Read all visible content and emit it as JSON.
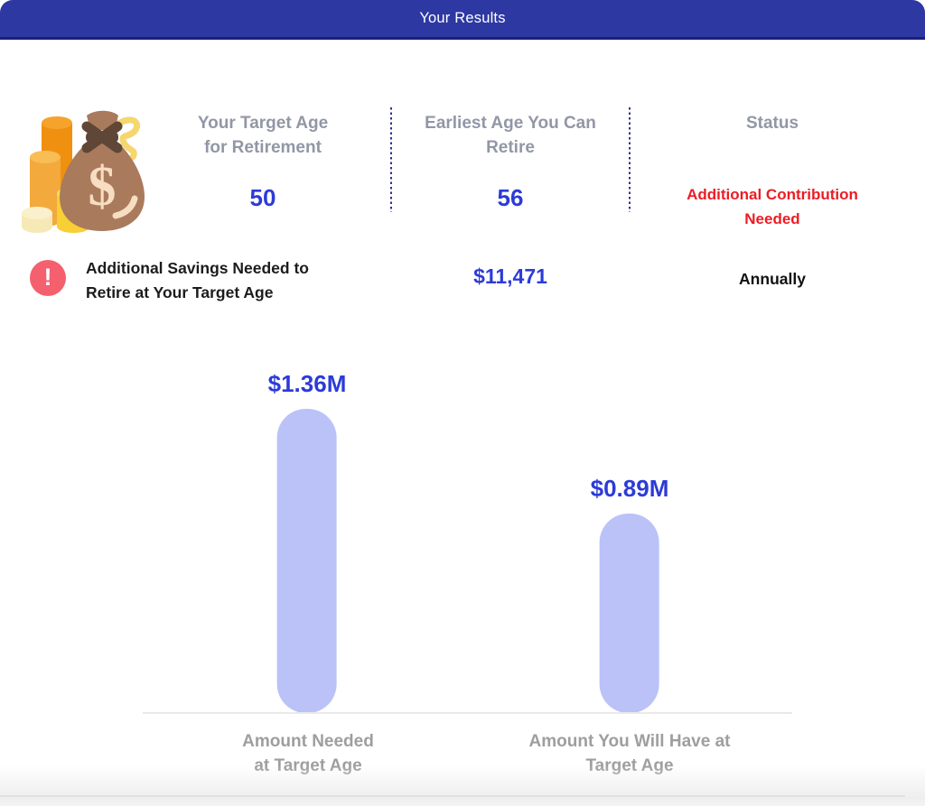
{
  "header": {
    "title": "Your Results",
    "background_color": "#2e38a2",
    "border_color": "#1b2178"
  },
  "summary": {
    "icon": "money-bag-coins-icon",
    "heading_color": "#9297a6",
    "value_color": "#2c3bd8",
    "columns": [
      {
        "heading": "Your Target Age\nfor Retirement",
        "value": "50"
      },
      {
        "heading": "Earliest Age You Can\nRetire",
        "value": "56"
      },
      {
        "heading": "Status",
        "value": "Additional Contribution\nNeeded",
        "value_color": "#ed1c24"
      }
    ]
  },
  "alert": {
    "icon": "exclamation-circle-icon",
    "icon_color": "#f4606e",
    "exclamation": "!",
    "label": "Additional Savings Needed to\nRetire at Your Target Age",
    "amount": "$11,471",
    "amount_color": "#2c3bd8",
    "frequency": "Annually"
  },
  "chart_data": {
    "type": "bar",
    "categories": [
      "Amount Needed\nat Target Age",
      "Amount You Will Have at\nTarget Age"
    ],
    "values": [
      1.36,
      0.89
    ],
    "value_labels": [
      "$1.36M",
      "$0.89M"
    ],
    "unit": "million USD",
    "ylim": [
      0,
      1.36
    ],
    "bar_color": "#bac2f7",
    "value_label_color": "#2c3bd8",
    "category_label_color": "#9e9e9e",
    "baseline_color": "#e9e9e9",
    "grid": false,
    "legend": false
  }
}
